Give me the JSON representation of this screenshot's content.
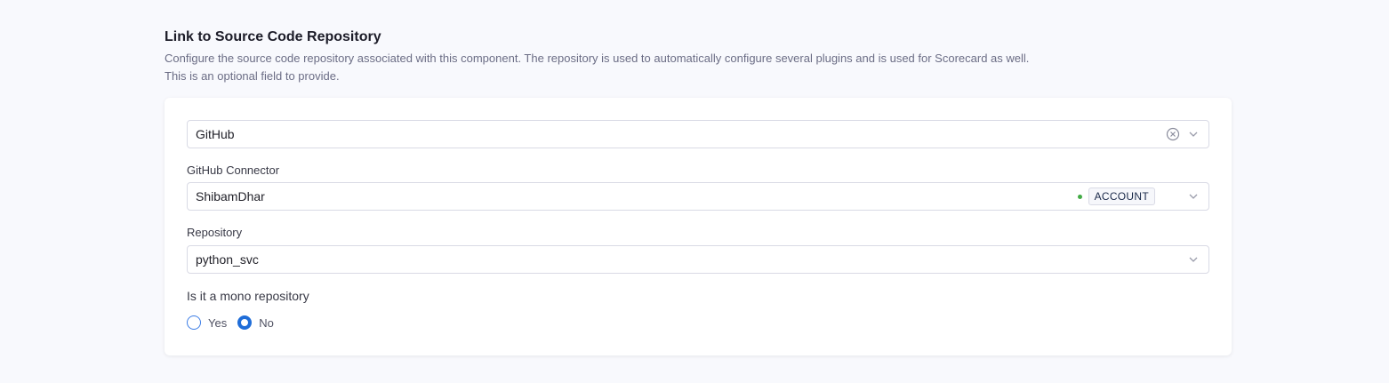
{
  "header": {
    "title": "Link to Source Code Repository",
    "description_line1": "Configure the source code repository associated with this component. The repository is used to automatically configure several plugins and is used for Scorecard as well.",
    "description_line2": "This is an optional field to provide."
  },
  "form": {
    "provider": {
      "value": "GitHub"
    },
    "connector": {
      "label": "GitHub Connector",
      "value": "ShibamDhar",
      "scope_badge": "ACCOUNT",
      "status_color": "#42ab45"
    },
    "repository": {
      "label": "Repository",
      "value": "python_svc"
    },
    "mono_repo": {
      "label": "Is it a mono repository",
      "options": [
        "Yes",
        "No"
      ],
      "selected": "No"
    }
  },
  "colors": {
    "accent": "#1f6dd8"
  }
}
